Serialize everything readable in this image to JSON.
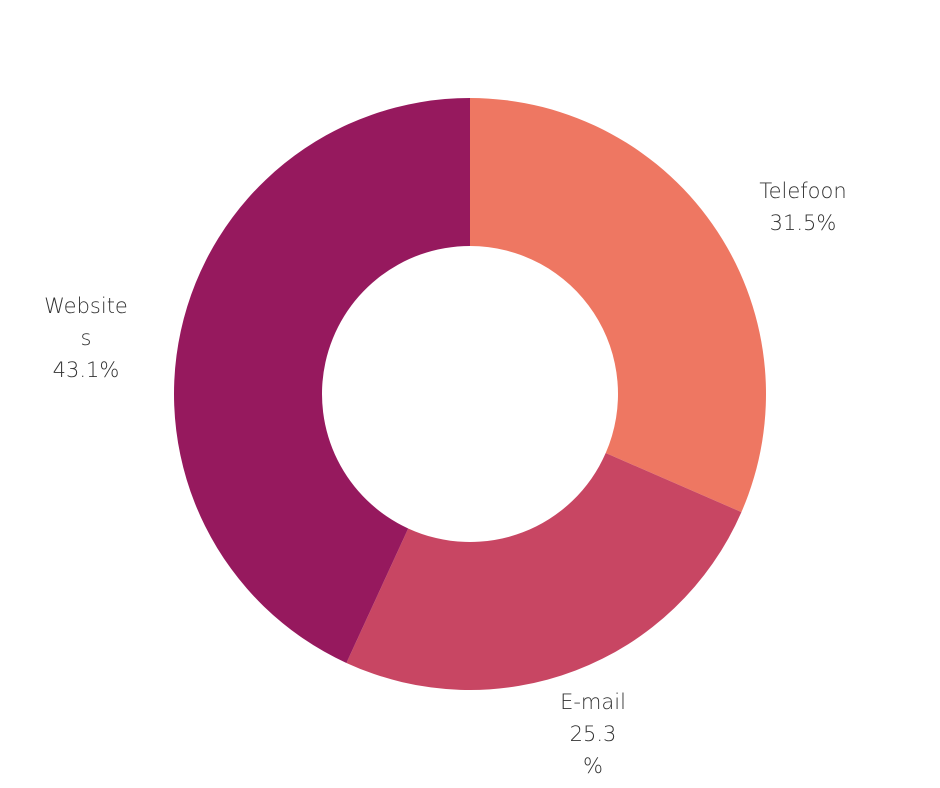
{
  "chart_data": {
    "type": "pie",
    "donut": true,
    "categories": [
      "Telefoon",
      "E-mail",
      "Websites"
    ],
    "values": [
      31.5,
      25.3,
      43.1
    ],
    "value_labels": [
      "31.5%",
      "25.3\n%",
      "43.1%"
    ],
    "category_labels": [
      "Telefoon",
      "E-mail",
      "Website\ns"
    ],
    "colors": [
      "#EE7762",
      "#C84663",
      "#96195E"
    ],
    "legend": "none"
  }
}
